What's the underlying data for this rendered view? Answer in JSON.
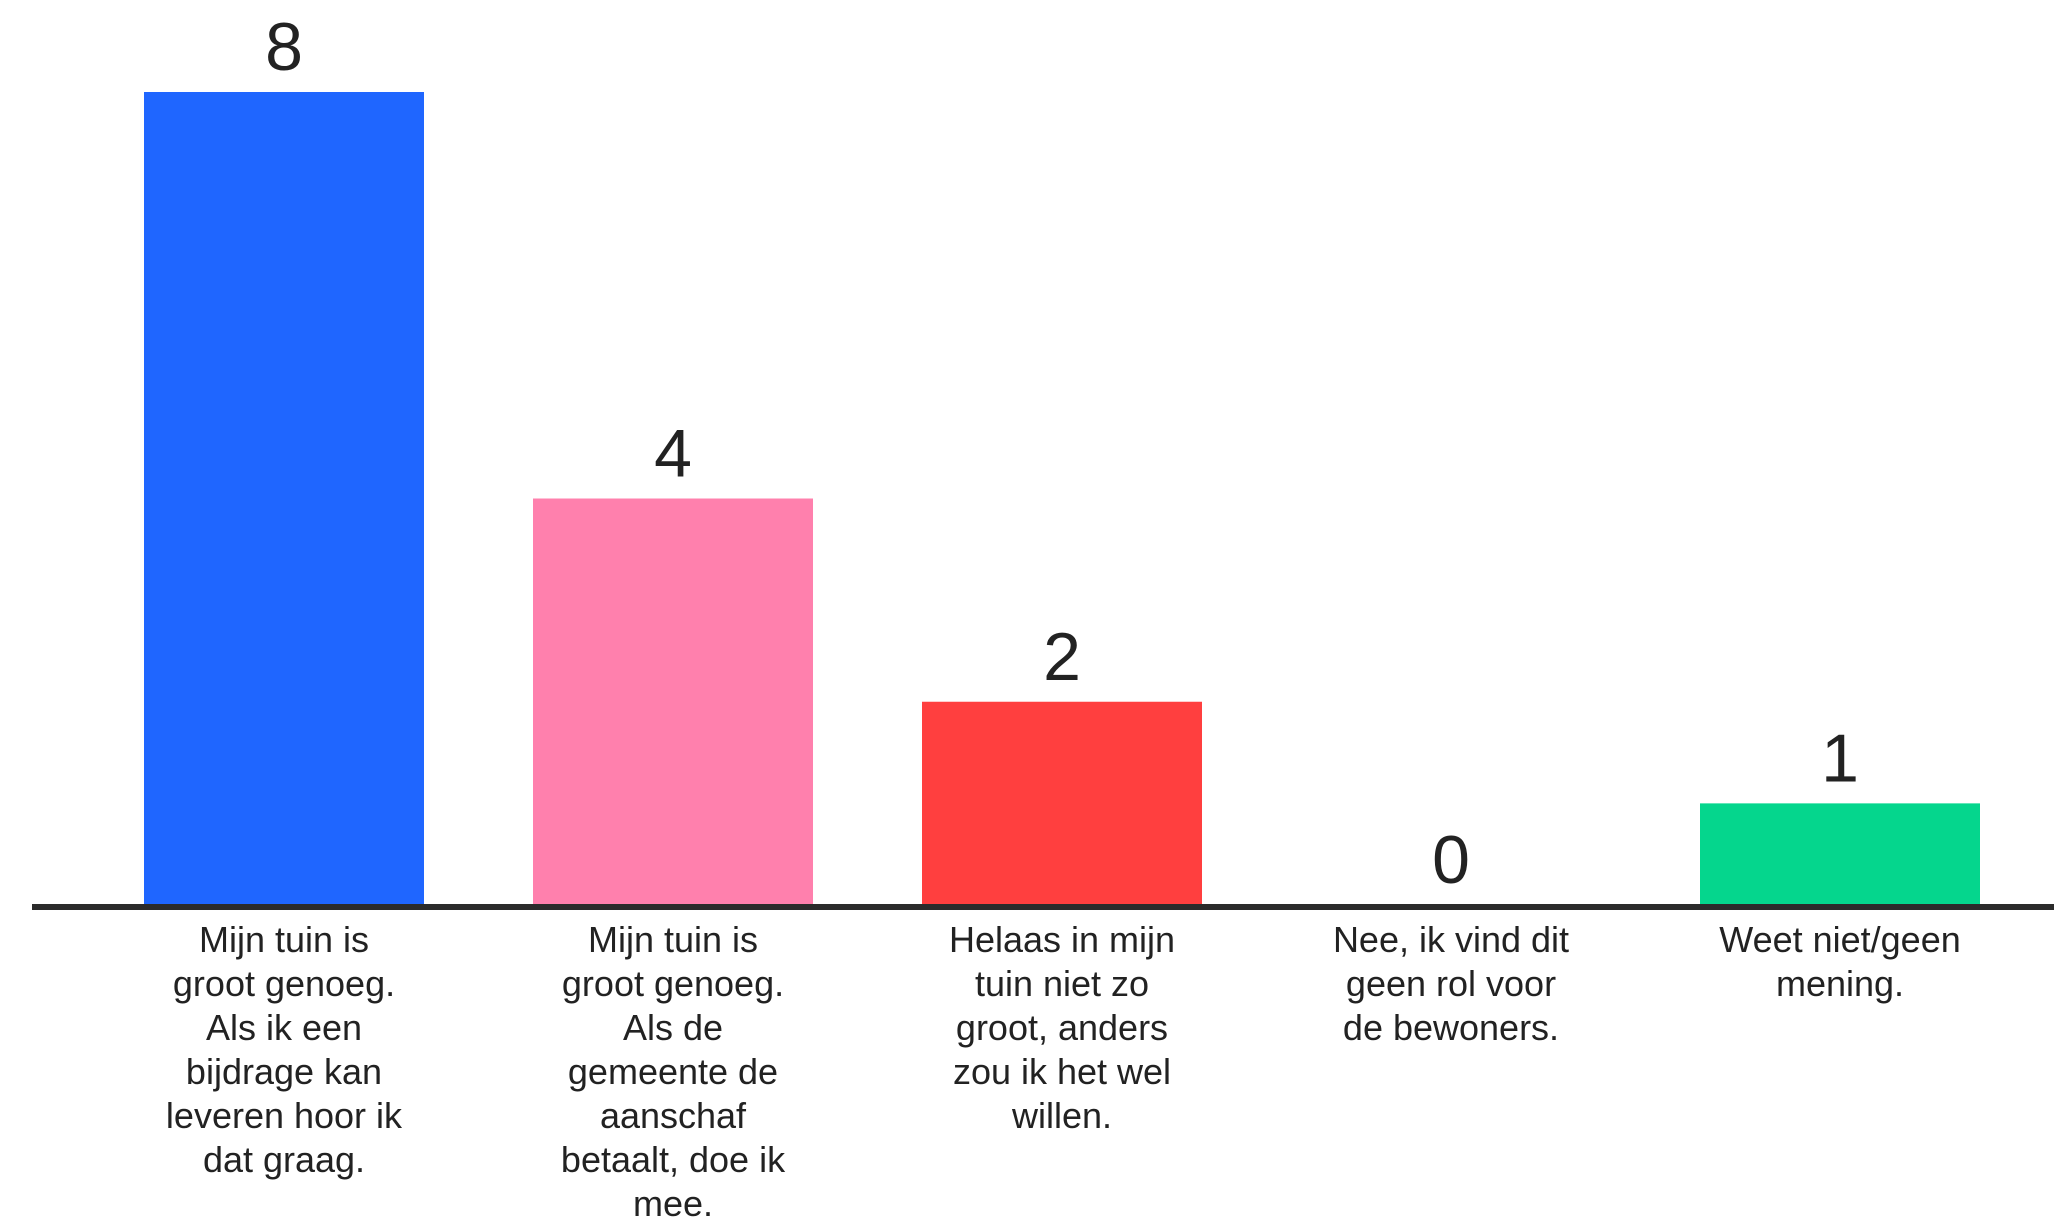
{
  "chart_data": {
    "type": "bar",
    "title": "",
    "xlabel": "",
    "ylabel": "",
    "ylim": [
      0,
      8
    ],
    "grid": false,
    "legend": "none",
    "categories": [
      "Mijn tuin is groot genoeg. Als ik een bijdrage kan leveren hoor ik dat graag.",
      "Mijn tuin is groot genoeg. Als de gemeente de aanschaf betaalt, doe ik mee.",
      "Helaas in mijn tuin niet zo groot, anders zou ik het wel willen.",
      "Nee, ik vind dit geen rol voor de bewoners.",
      "Weet niet/geen mening."
    ],
    "category_lines": [
      [
        "Mijn tuin is",
        "groot genoeg.",
        "Als ik een",
        "bijdrage kan",
        "leveren hoor ik",
        "dat graag."
      ],
      [
        "Mijn tuin is",
        "groot genoeg.",
        "Als de",
        "gemeente de",
        "aanschaf",
        "betaalt, doe ik",
        "mee."
      ],
      [
        "Helaas in mijn",
        "tuin niet zo",
        "groot, anders",
        "zou ik het wel",
        "willen."
      ],
      [
        "Nee, ik vind dit",
        "geen rol voor",
        "de bewoners."
      ],
      [
        "Weet niet/geen",
        "mening."
      ]
    ],
    "values": [
      8,
      4,
      2,
      0,
      1
    ],
    "colors": [
      "#1f66ff",
      "#ff80ad",
      "#ff3f3f",
      "#ffffff",
      "#05d68d"
    ],
    "axis_color": "#2b2b2b"
  }
}
